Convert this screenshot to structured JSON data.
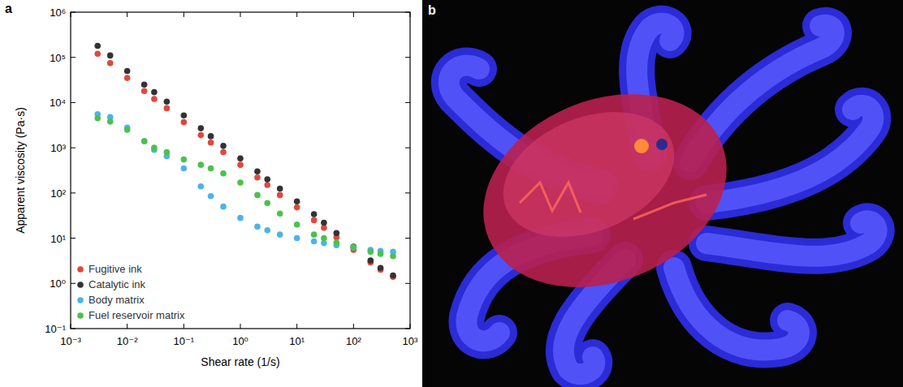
{
  "panel_labels": [
    "a",
    "b"
  ],
  "chart_data": {
    "type": "scatter",
    "x_label": "Shear rate (1/s)",
    "y_label": "Apparent viscosity (Pa·s)",
    "log": true,
    "grid": false,
    "legend": "lower left",
    "marker": "circle",
    "xlim": [
      0.001,
      1000
    ],
    "ylim": [
      0.1,
      1000000
    ],
    "xticks": [
      {
        "value": 0.001,
        "label": "10⁻³"
      },
      {
        "value": 0.01,
        "label": "10⁻²"
      },
      {
        "value": 0.1,
        "label": "10⁻¹"
      },
      {
        "value": 1,
        "label": "10⁰"
      },
      {
        "value": 10,
        "label": "10¹"
      },
      {
        "value": 100,
        "label": "10²"
      },
      {
        "value": 1000,
        "label": "10³"
      }
    ],
    "yticks": [
      {
        "value": 0.1,
        "label": "10⁻¹"
      },
      {
        "value": 1,
        "label": "10⁰"
      },
      {
        "value": 10,
        "label": "10¹"
      },
      {
        "value": 100,
        "label": "10²"
      },
      {
        "value": 1000,
        "label": "10³"
      },
      {
        "value": 10000,
        "label": "10⁴"
      },
      {
        "value": 100000,
        "label": "10⁵"
      },
      {
        "value": 1000000,
        "label": "10⁶"
      }
    ],
    "x": [
      0.003,
      0.005,
      0.01,
      0.02,
      0.03,
      0.05,
      0.1,
      0.2,
      0.3,
      0.5,
      1,
      2,
      3,
      5,
      10,
      20,
      30,
      50,
      100,
      200,
      300,
      500
    ],
    "series": [
      {
        "name": "Fugitive ink",
        "color": "#e2473c",
        "values": [
          120000,
          75000,
          35000,
          18000,
          12000,
          7500,
          3700,
          1900,
          1300,
          800,
          420,
          220,
          150,
          90,
          48,
          25,
          17,
          10.5,
          5.5,
          2.9,
          2.0,
          1.4
        ]
      },
      {
        "name": "Catalytic ink",
        "color": "#333333",
        "values": [
          180000,
          110000,
          50000,
          25000,
          17000,
          10500,
          5200,
          2700,
          1800,
          1100,
          580,
          300,
          200,
          125,
          65,
          34,
          22,
          13,
          6.5,
          3.2,
          2.2,
          1.5
        ]
      },
      {
        "name": "Body matrix",
        "color": "#4db3ea",
        "values": [
          5500,
          4800,
          2800,
          1400,
          900,
          650,
          350,
          140,
          85,
          50,
          28,
          18,
          15,
          12,
          10,
          8.5,
          7.8,
          7,
          6.2,
          5.5,
          5.2,
          5.0
        ]
      },
      {
        "name": "Fuel reservoir matrix",
        "color": "#4cc14c",
        "values": [
          4500,
          3800,
          2500,
          1400,
          1000,
          800,
          550,
          420,
          350,
          270,
          170,
          90,
          60,
          35,
          20,
          12,
          10,
          8,
          6.3,
          5,
          4.5,
          4.0
        ]
      }
    ]
  }
}
